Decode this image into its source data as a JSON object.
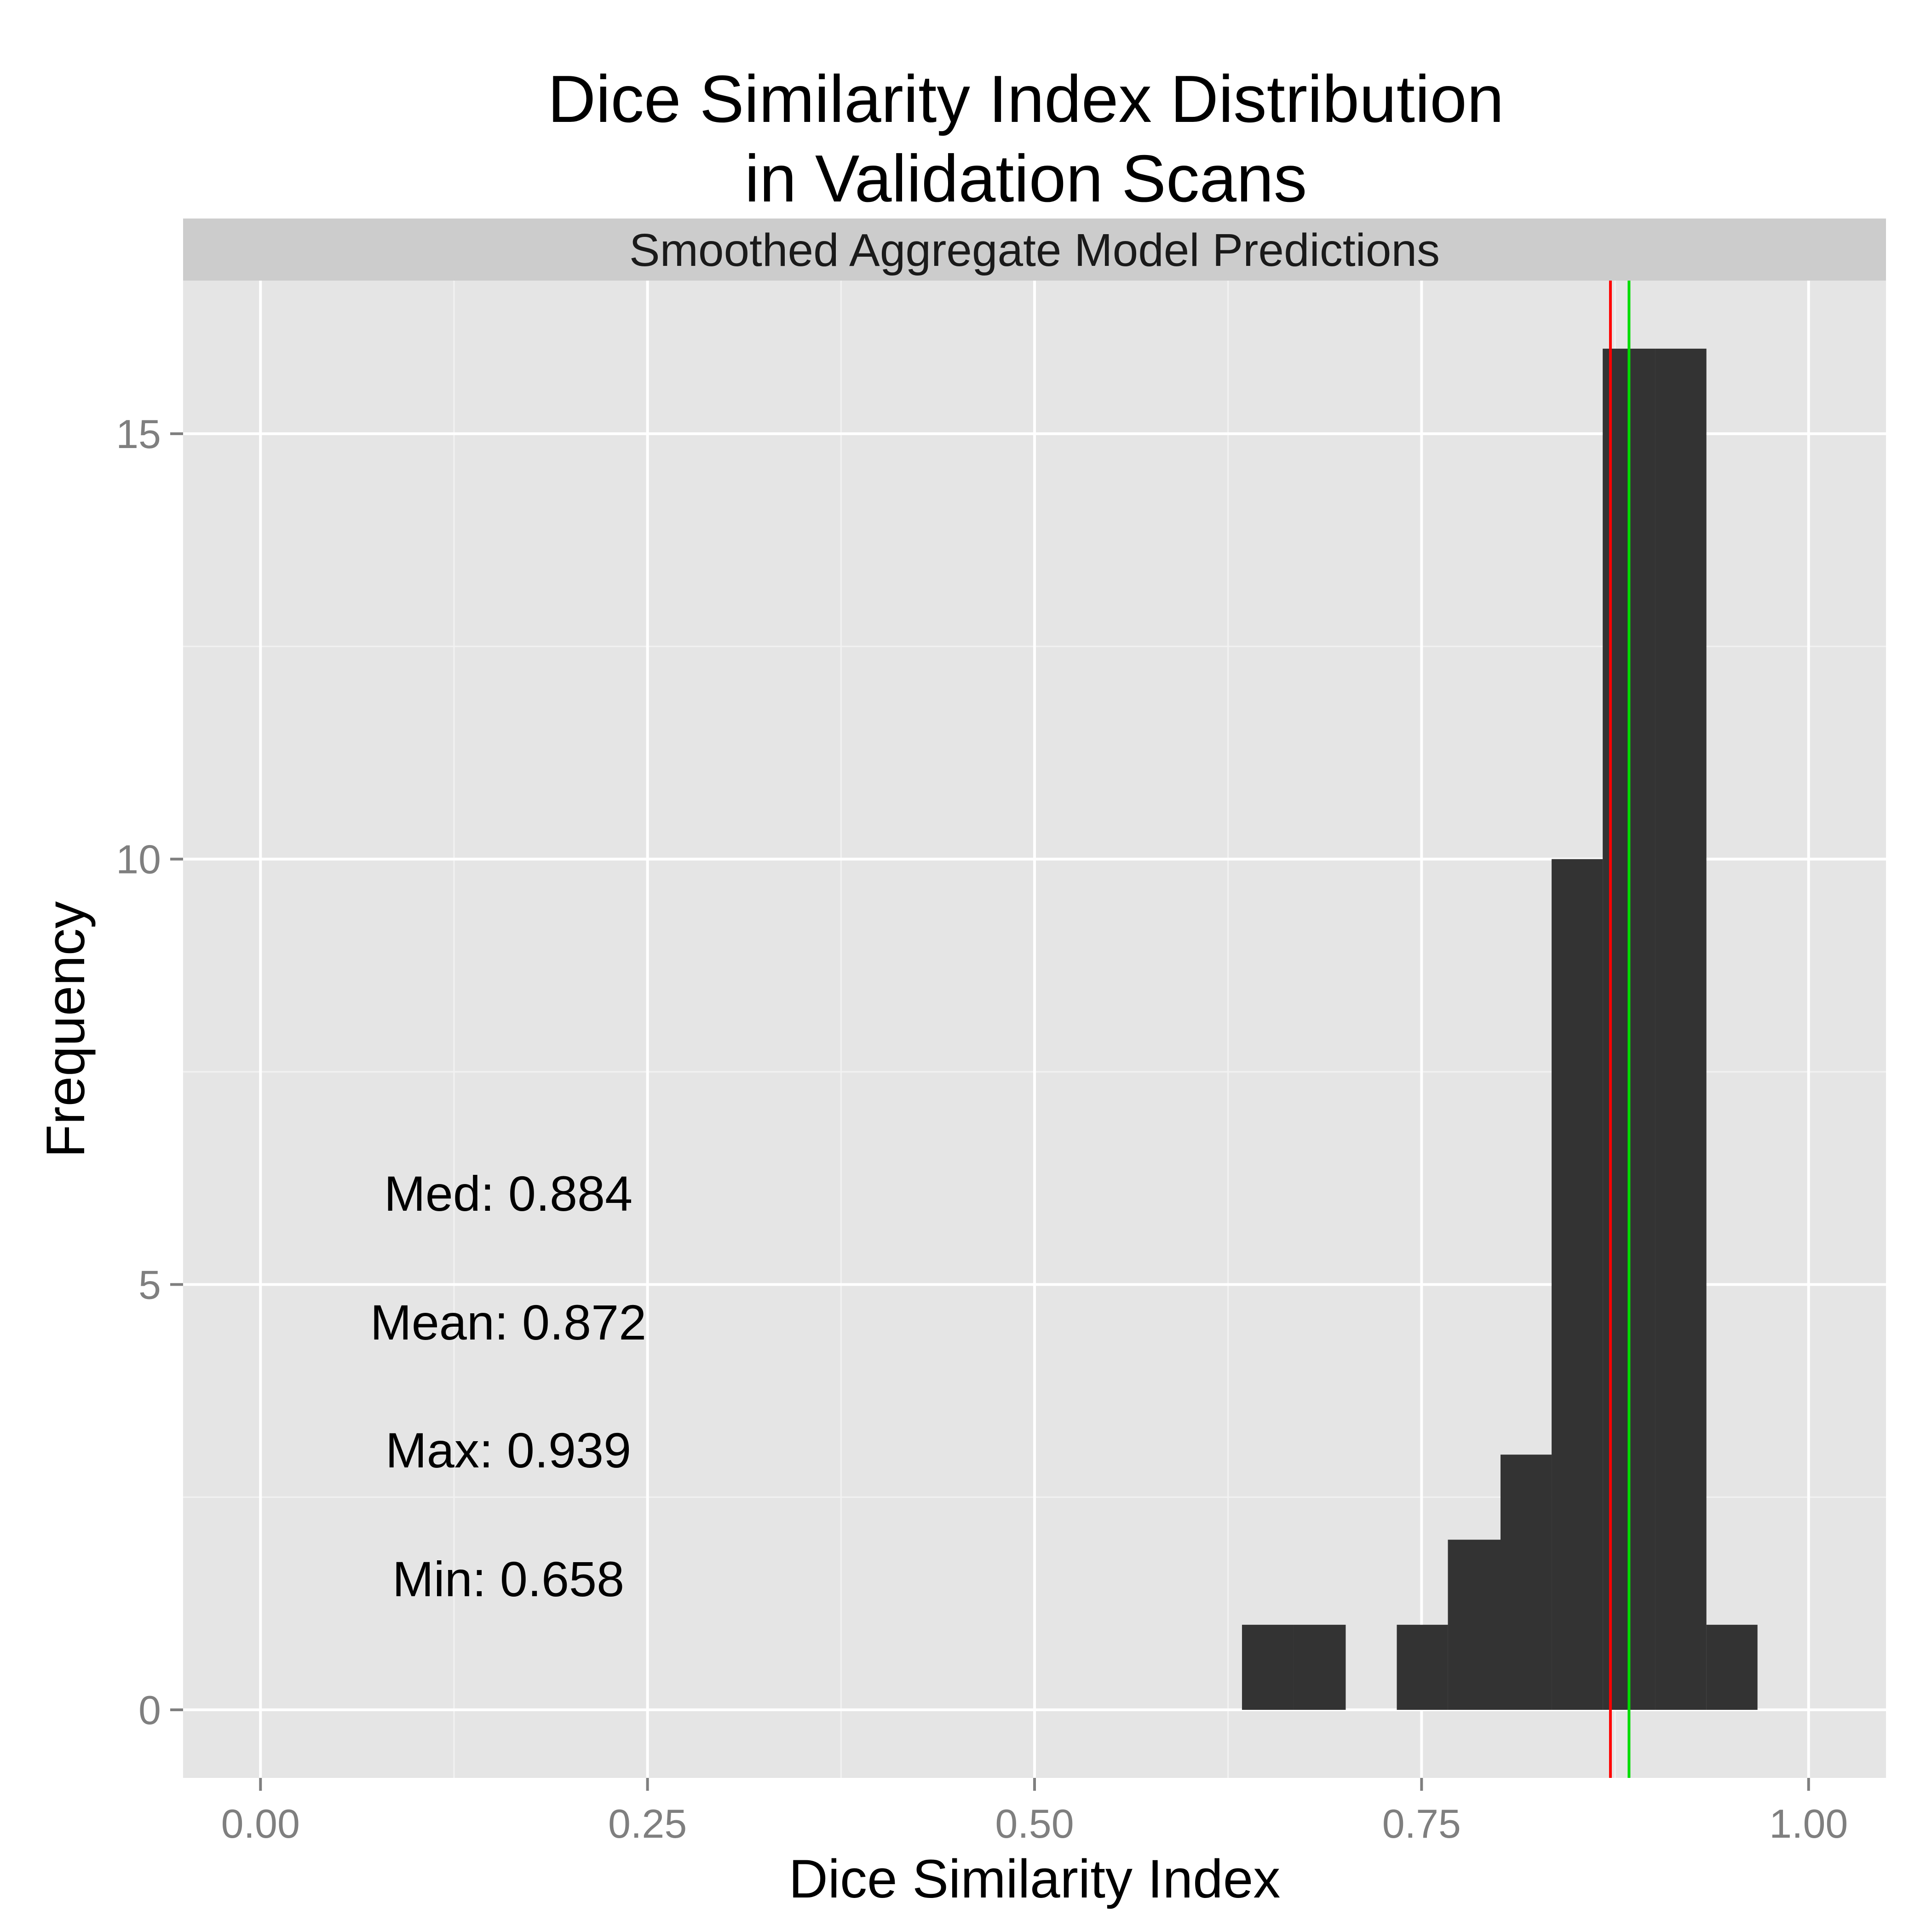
{
  "chart_data": {
    "type": "bar",
    "title_lines": [
      "Dice Similarity Index Distribution",
      "in Validation Scans"
    ],
    "facet_label": "Smoothed Aggregate Model Predictions",
    "xlabel": "Dice Similarity Index",
    "ylabel": "Frequency",
    "xlim": [
      -0.05,
      1.05
    ],
    "ylim": [
      -0.8,
      16.8
    ],
    "x_ticks": [
      0.0,
      0.25,
      0.5,
      0.75,
      1.0
    ],
    "x_tick_labels": [
      "0.00",
      "0.25",
      "0.50",
      "0.75",
      "1.00"
    ],
    "y_ticks": [
      0,
      5,
      10,
      15
    ],
    "y_tick_labels": [
      "0",
      "5",
      "10",
      "15"
    ],
    "bin_width": 0.0333,
    "bins": [
      {
        "x_start": 0.634,
        "x_end": 0.667,
        "count": 1
      },
      {
        "x_start": 0.667,
        "x_end": 0.701,
        "count": 1
      },
      {
        "x_start": 0.701,
        "x_end": 0.734,
        "count": 0
      },
      {
        "x_start": 0.734,
        "x_end": 0.767,
        "count": 1
      },
      {
        "x_start": 0.767,
        "x_end": 0.801,
        "count": 2
      },
      {
        "x_start": 0.801,
        "x_end": 0.834,
        "count": 3
      },
      {
        "x_start": 0.834,
        "x_end": 0.867,
        "count": 10
      },
      {
        "x_start": 0.867,
        "x_end": 0.901,
        "count": 16
      },
      {
        "x_start": 0.901,
        "x_end": 0.934,
        "count": 16
      },
      {
        "x_start": 0.934,
        "x_end": 0.967,
        "count": 1
      }
    ],
    "reference_lines": [
      {
        "x": 0.872,
        "color": "#ff0000",
        "meaning": "mean"
      },
      {
        "x": 0.884,
        "color": "#00dd00",
        "meaning": "median"
      }
    ],
    "annotations": [
      "Med: 0.884",
      "Mean: 0.872",
      "Max: 0.939",
      "Min: 0.658"
    ],
    "colors": {
      "bar_fill": "#333333",
      "panel_background": "#e5e5e5",
      "strip_background": "#cccccc",
      "major_grid": "#ffffff",
      "minor_grid": "#f2f2f2"
    },
    "grid": true,
    "legend": "none"
  }
}
